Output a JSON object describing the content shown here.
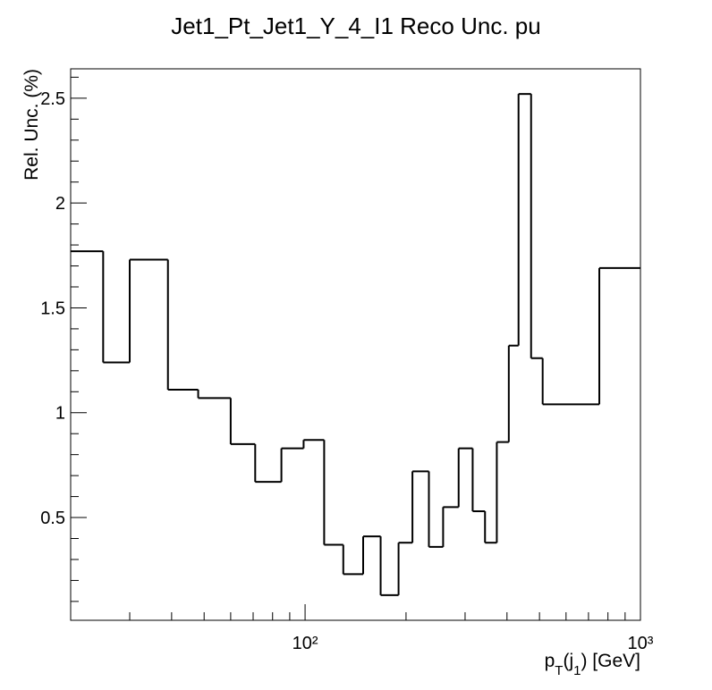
{
  "chart_data": {
    "type": "histogram",
    "title": "Jet1_Pt_Jet1_Y_4_I1 Reco Unc. pu",
    "ylabel": "Rel. Unc. (%)",
    "xlabel_parts": [
      "p",
      "T",
      "(j",
      "1",
      ") [GeV]"
    ],
    "bins": [
      20,
      25,
      30,
      39,
      48,
      60,
      71,
      85,
      99,
      114,
      130,
      149,
      168,
      190,
      209,
      234,
      258,
      287,
      316,
      344,
      373,
      405,
      433,
      472,
      511,
      754,
      1000
    ],
    "values": [
      1.77,
      1.24,
      1.73,
      1.11,
      1.07,
      0.85,
      0.67,
      0.83,
      0.87,
      0.37,
      0.23,
      0.41,
      0.13,
      0.38,
      0.72,
      0.36,
      0.55,
      0.83,
      0.53,
      0.38,
      0.86,
      1.32,
      2.52,
      1.26,
      1.04,
      1.69
    ],
    "color": "#000000",
    "xlog": true,
    "xlim": [
      20,
      1000
    ],
    "xticks": [
      {
        "value": 100,
        "label": "10²"
      },
      {
        "value": 1000,
        "label": "10³"
      }
    ],
    "xminor_ticks": [
      20,
      30,
      40,
      50,
      60,
      70,
      80,
      90,
      200,
      300,
      400,
      500,
      600,
      700,
      800,
      900
    ],
    "ylim": [
      0.01,
      2.64
    ],
    "yticks": [
      0.5,
      1,
      1.5,
      2,
      2.5
    ],
    "yminor_ticks": [
      0.1,
      0.2,
      0.3,
      0.4,
      0.6,
      0.7,
      0.8,
      0.9,
      1.1,
      1.2,
      1.3,
      1.4,
      1.6,
      1.7,
      1.8,
      1.9,
      2.1,
      2.2,
      2.3,
      2.4,
      2.6
    ]
  }
}
